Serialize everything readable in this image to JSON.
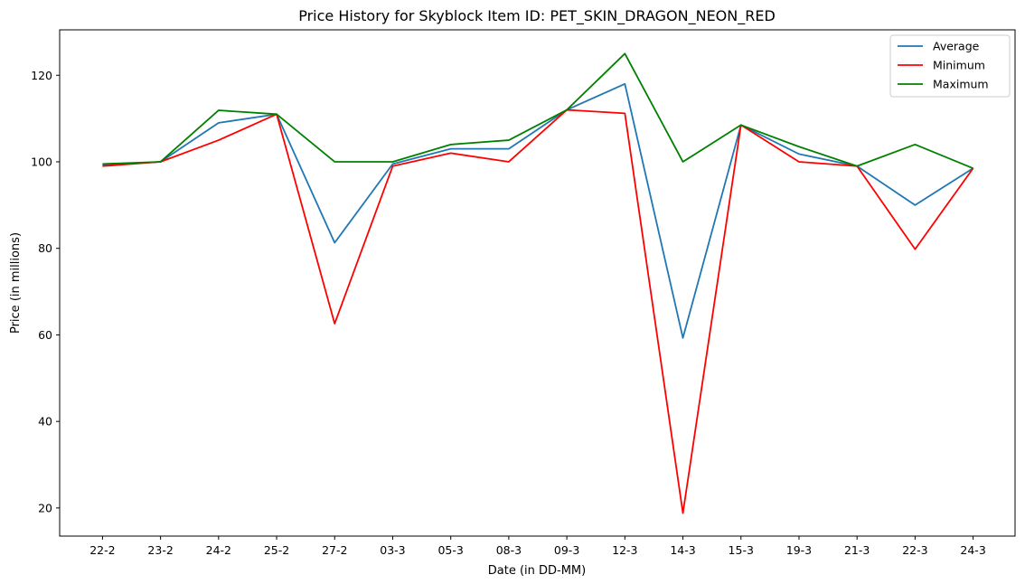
{
  "chart_data": {
    "type": "line",
    "title": "Price History for Skyblock Item ID: PET_SKIN_DRAGON_NEON_RED",
    "xlabel": "Date (in DD-MM)",
    "ylabel": "Price (in millions)",
    "categories": [
      "22-2",
      "23-2",
      "24-2",
      "25-2",
      "27-2",
      "03-3",
      "05-3",
      "08-3",
      "09-3",
      "12-3",
      "14-3",
      "15-3",
      "19-3",
      "21-3",
      "22-3",
      "24-3"
    ],
    "ylim": [
      13.5,
      130.5
    ],
    "yticks": [
      20,
      40,
      60,
      80,
      100,
      120
    ],
    "grid": false,
    "legend_position": "top-right",
    "series": [
      {
        "name": "Average",
        "color": "#1f77b4",
        "values": [
          99.2,
          100,
          109,
          111,
          81.3,
          99.5,
          103,
          103,
          112,
          118,
          59.3,
          108.5,
          101.8,
          99,
          90,
          98.5
        ]
      },
      {
        "name": "Minimum",
        "color": "#ff0000",
        "values": [
          99,
          100,
          105,
          111,
          62.6,
          99,
          102,
          100,
          112,
          111.2,
          18.8,
          108.5,
          100,
          99,
          79.8,
          98.5
        ]
      },
      {
        "name": "Maximum",
        "color": "#008000",
        "values": [
          99.5,
          100,
          111.9,
          111,
          100,
          100,
          104,
          105,
          112,
          125,
          100,
          108.5,
          103.5,
          99,
          104,
          98.5
        ]
      }
    ]
  }
}
